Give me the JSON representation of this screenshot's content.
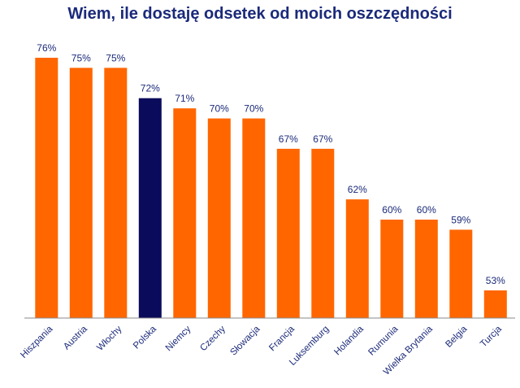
{
  "chart_data": {
    "type": "bar",
    "title": "Wiem, ile dostaję odsetek od moich oszczędności",
    "xlabel": "",
    "ylabel": "",
    "ylim": [
      50,
      80
    ],
    "grid": false,
    "categories": [
      "Hiszpania",
      "Austria",
      "Włochy",
      "Polska",
      "Niemcy",
      "Czechy",
      "Słowacja",
      "Francja",
      "Luksemburg",
      "Holandia",
      "Rumunia",
      "Wielka Brytania",
      "Belgia",
      "Turcja"
    ],
    "values": [
      76,
      75,
      75,
      72,
      71,
      70,
      70,
      67,
      67,
      62,
      60,
      60,
      59,
      53
    ],
    "labels": [
      "76%",
      "75%",
      "75%",
      "72%",
      "71%",
      "70%",
      "70%",
      "67%",
      "67%",
      "62%",
      "60%",
      "60%",
      "59%",
      "53%"
    ],
    "colors": {
      "default": "#ff6600",
      "highlight": "#0b0b5c",
      "text": "#1b2a7a",
      "axis": "#888888"
    },
    "highlight_index": 3
  }
}
